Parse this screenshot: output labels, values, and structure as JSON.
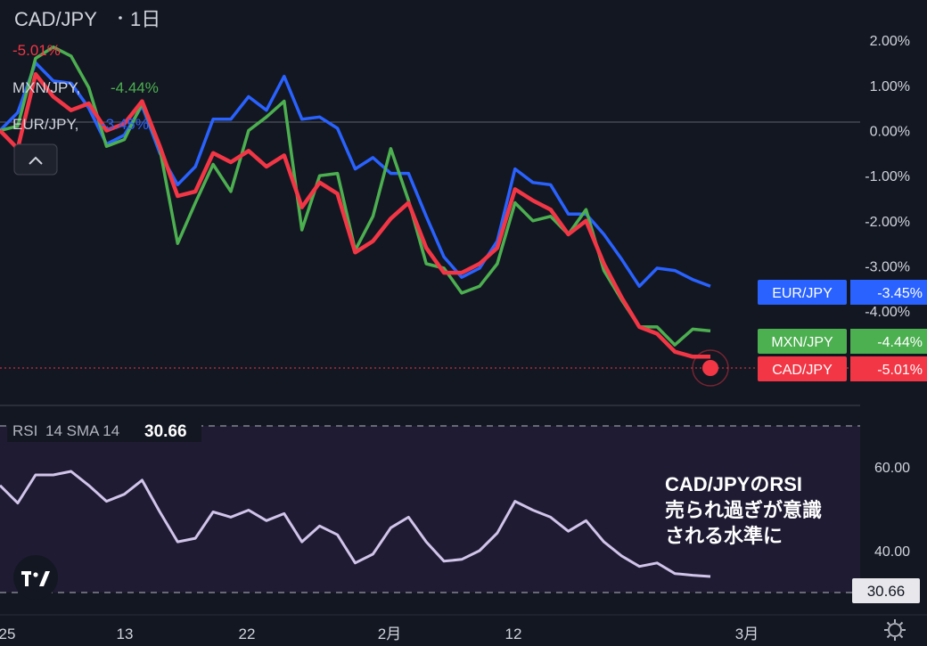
{
  "header": {
    "symbol": "CAD/JPY",
    "interval": "1日",
    "change": "-5.01%",
    "change_color": "#f23645"
  },
  "legend": [
    {
      "label": "MXN/JPY,",
      "value": "-4.44%",
      "color": "#4caf50"
    },
    {
      "label": "EUR/JPY,",
      "value": "-3.45%",
      "color": "#2962ff"
    }
  ],
  "collapse_icon": "chevron-up-icon",
  "price_tags": [
    {
      "label": "EUR/JPY",
      "value": "-3.45%",
      "color": "#2962ff",
      "value_color": "#2962ff"
    },
    {
      "label": "MXN/JPY",
      "value": "-4.44%",
      "color": "#4caf50",
      "value_color": "#4caf50"
    },
    {
      "label": "CAD/JPY",
      "value": "-5.01%",
      "color": "#f23645",
      "value_color": "#f23645"
    }
  ],
  "rsi": {
    "label": "RSI",
    "params": "14 SMA 14",
    "value": "30.66",
    "tag": "30.66",
    "axis_labels": [
      "60.00",
      "40.00"
    ]
  },
  "annotation": [
    "CAD/JPYのRSI",
    "売られ過ぎが意識",
    "される水準に"
  ],
  "x_axis": [
    "25",
    "13",
    "22",
    "2月",
    "12",
    "3月"
  ],
  "settings_icon": "gear-icon",
  "logo": "tradingview-logo",
  "chart_data": [
    {
      "type": "line",
      "title": "CAD/JPY 1日",
      "y_axis_labels": [
        "2.00%",
        "1.00%",
        "0.00%",
        "-1.00%",
        "-2.00%",
        "-3.00%",
        "-4.00%"
      ],
      "ylim": [
        -5.3,
        2.3
      ],
      "x": [
        0,
        1,
        2,
        3,
        4,
        5,
        6,
        7,
        8,
        9,
        10,
        11,
        12,
        13,
        14,
        15,
        16,
        17,
        18,
        19,
        20,
        21,
        22,
        23,
        24,
        25,
        26,
        27,
        28,
        29,
        30,
        31,
        32,
        33,
        34,
        35,
        36,
        37,
        38,
        39,
        40
      ],
      "series": [
        {
          "name": "EUR/JPY",
          "color": "#2962ff",
          "values": [
            0.0,
            0.4,
            1.5,
            1.1,
            1.05,
            0.5,
            -0.3,
            -0.1,
            0.55,
            -0.5,
            -1.2,
            -0.8,
            0.25,
            0.25,
            0.75,
            0.45,
            1.2,
            0.25,
            0.3,
            0.05,
            -0.85,
            -0.6,
            -0.95,
            -0.95,
            -1.9,
            -2.8,
            -3.25,
            -3.05,
            -2.45,
            -0.85,
            -1.15,
            -1.2,
            -1.85,
            -1.85,
            -2.3,
            -2.85,
            -3.45,
            -3.05,
            -3.1,
            -3.3,
            -3.45
          ]
        },
        {
          "name": "MXN/JPY",
          "color": "#4caf50",
          "values": [
            0.0,
            0.1,
            1.6,
            1.85,
            1.65,
            0.95,
            -0.35,
            -0.2,
            0.6,
            -0.4,
            -2.5,
            -1.6,
            -0.75,
            -1.35,
            0.0,
            0.3,
            0.65,
            -2.2,
            -1.0,
            -0.95,
            -2.65,
            -1.9,
            -0.4,
            -1.55,
            -2.95,
            -3.05,
            -3.6,
            -3.45,
            -2.95,
            -1.6,
            -2.0,
            -1.9,
            -2.3,
            -1.75,
            -3.1,
            -3.75,
            -4.35,
            -4.35,
            -4.75,
            -4.4,
            -4.44
          ]
        },
        {
          "name": "CAD/JPY",
          "color": "#f23645",
          "values": [
            0.0,
            -0.4,
            1.25,
            0.75,
            0.45,
            0.6,
            0.0,
            0.15,
            0.65,
            -0.35,
            -1.45,
            -1.35,
            -0.5,
            -0.7,
            -0.45,
            -0.8,
            -0.55,
            -1.7,
            -1.15,
            -1.4,
            -2.7,
            -2.45,
            -1.95,
            -1.6,
            -2.6,
            -3.15,
            -3.15,
            -2.95,
            -2.6,
            -1.3,
            -1.55,
            -1.75,
            -2.3,
            -2.0,
            -2.95,
            -3.7,
            -4.35,
            -4.5,
            -4.9,
            -5.01,
            -5.01
          ]
        }
      ]
    },
    {
      "type": "line",
      "title": "RSI 14 SMA 14",
      "ylim": [
        26.1,
        73.4
      ],
      "x": [
        0,
        1,
        2,
        3,
        4,
        5,
        6,
        7,
        8,
        9,
        10,
        11,
        12,
        13,
        14,
        15,
        16,
        17,
        18,
        19,
        20,
        21,
        22,
        23,
        24,
        25,
        26,
        27,
        28,
        29,
        30,
        31,
        32,
        33,
        34,
        35,
        36,
        37,
        38,
        39,
        40
      ],
      "series": [
        {
          "name": "RSI",
          "color": "#d1c4e9",
          "values": [
            56.5,
            51.5,
            59.5,
            59.5,
            60.5,
            56.5,
            52.0,
            54.0,
            58.0,
            49.0,
            40.5,
            41.5,
            49.0,
            47.5,
            49.5,
            46.5,
            48.5,
            40.5,
            45.0,
            42.5,
            34.5,
            37.0,
            44.5,
            47.5,
            40.5,
            35.0,
            35.5,
            38.0,
            43.0,
            52.0,
            49.5,
            47.5,
            43.5,
            46.5,
            40.5,
            36.5,
            33.5,
            34.5,
            31.5,
            31.0,
            30.66
          ]
        }
      ]
    }
  ]
}
